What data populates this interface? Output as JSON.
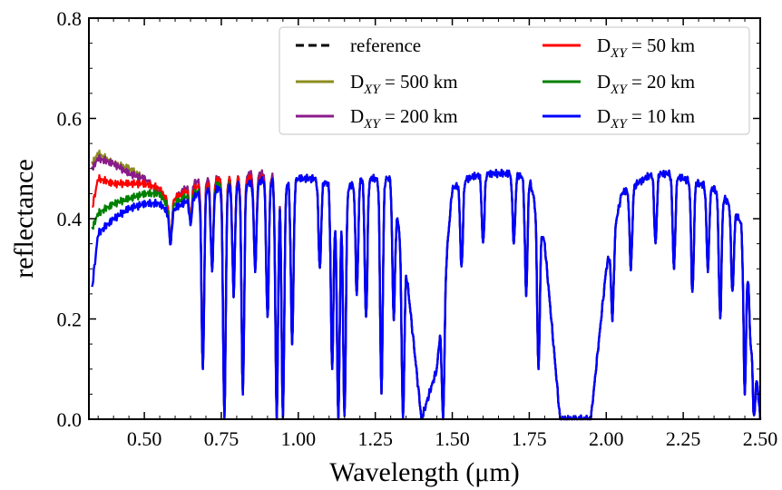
{
  "chart_data": {
    "type": "line",
    "title": "",
    "xlabel": "Wavelength (μm)",
    "ylabel": "reflectance",
    "xlim": [
      0.32,
      2.5
    ],
    "ylim": [
      0.0,
      0.8
    ],
    "xticks": [
      0.5,
      0.75,
      1.0,
      1.25,
      1.5,
      1.75,
      2.0,
      2.25,
      2.5
    ],
    "xtick_labels": [
      "0.50",
      "0.75",
      "1.00",
      "1.25",
      "1.50",
      "1.75",
      "2.00",
      "2.25",
      "2.50"
    ],
    "yticks": [
      0.0,
      0.2,
      0.4,
      0.6,
      0.8
    ],
    "ytick_labels": [
      "0.0",
      "0.2",
      "0.4",
      "0.6",
      "0.8"
    ],
    "grid": false,
    "legend_position": "top-right",
    "legend_columns": 2,
    "series": [
      {
        "id": "reference",
        "label": "reference",
        "color": "#000000",
        "dashed": true
      },
      {
        "id": "d500",
        "label_main": "D",
        "label_sub": "XY",
        "label_rest": " = 500 km",
        "color": "#8c8c1e",
        "dashed": false
      },
      {
        "id": "d200",
        "label_main": "D",
        "label_sub": "XY",
        "label_rest": " = 200 km",
        "color": "#8b1a8b",
        "dashed": false
      },
      {
        "id": "d50",
        "label_main": "D",
        "label_sub": "XY",
        "label_rest": " = 50 km",
        "color": "#ff0000",
        "dashed": false
      },
      {
        "id": "d20",
        "label_main": "D",
        "label_sub": "XY",
        "label_rest": " = 20 km",
        "color": "#008000",
        "dashed": false
      },
      {
        "id": "d10",
        "label_main": "D",
        "label_sub": "XY",
        "label_rest": " = 10 km",
        "color": "#0000ff",
        "dashed": false
      }
    ],
    "envelope": {
      "x": [
        0.33,
        0.35,
        0.4,
        0.45,
        0.5,
        0.55,
        0.58,
        0.6,
        0.65,
        0.7,
        0.75,
        0.8,
        0.85,
        0.9,
        0.93,
        0.96,
        1.0,
        1.05,
        1.1,
        1.13,
        1.16,
        1.2,
        1.25,
        1.3,
        1.35,
        1.4,
        1.45,
        1.5,
        1.55,
        1.6,
        1.65,
        1.7,
        1.75,
        1.8,
        1.85,
        1.9,
        1.95,
        2.0,
        2.05,
        2.1,
        2.15,
        2.2,
        2.25,
        2.3,
        2.35,
        2.4,
        2.45,
        2.5
      ],
      "reference": [
        0.51,
        0.53,
        0.51,
        0.5,
        0.48,
        0.45,
        0.43,
        0.44,
        0.47,
        0.48,
        0.48,
        0.48,
        0.49,
        0.49,
        0.48,
        0.47,
        0.48,
        0.48,
        0.47,
        0.4,
        0.46,
        0.48,
        0.48,
        0.48,
        0.3,
        0.0,
        0.1,
        0.46,
        0.48,
        0.49,
        0.49,
        0.49,
        0.48,
        0.35,
        0.0,
        0.0,
        0.0,
        0.3,
        0.45,
        0.47,
        0.49,
        0.49,
        0.48,
        0.47,
        0.46,
        0.43,
        0.38,
        0.0
      ],
      "d500": [
        0.51,
        0.53,
        0.51,
        0.5,
        0.48,
        0.45,
        0.43,
        0.44,
        0.47,
        0.48,
        0.48,
        0.48,
        0.49,
        0.49,
        0.48,
        0.47,
        0.48,
        0.48,
        0.47,
        0.4,
        0.46,
        0.48,
        0.48,
        0.48,
        0.3,
        0.0,
        0.1,
        0.46,
        0.48,
        0.49,
        0.49,
        0.49,
        0.48,
        0.35,
        0.0,
        0.0,
        0.0,
        0.3,
        0.45,
        0.47,
        0.49,
        0.49,
        0.48,
        0.47,
        0.46,
        0.43,
        0.38,
        0.0
      ],
      "d200": [
        0.5,
        0.52,
        0.51,
        0.49,
        0.48,
        0.45,
        0.43,
        0.44,
        0.47,
        0.48,
        0.48,
        0.48,
        0.49,
        0.49,
        0.48,
        0.47,
        0.48,
        0.48,
        0.47,
        0.4,
        0.46,
        0.48,
        0.48,
        0.48,
        0.3,
        0.0,
        0.1,
        0.46,
        0.48,
        0.49,
        0.49,
        0.49,
        0.48,
        0.35,
        0.0,
        0.0,
        0.0,
        0.3,
        0.45,
        0.47,
        0.49,
        0.49,
        0.48,
        0.47,
        0.46,
        0.43,
        0.38,
        0.0
      ],
      "d50": [
        0.42,
        0.48,
        0.47,
        0.47,
        0.47,
        0.46,
        0.43,
        0.44,
        0.46,
        0.47,
        0.48,
        0.48,
        0.48,
        0.48,
        0.47,
        0.47,
        0.48,
        0.48,
        0.47,
        0.4,
        0.46,
        0.48,
        0.48,
        0.48,
        0.3,
        0.0,
        0.1,
        0.46,
        0.48,
        0.49,
        0.49,
        0.49,
        0.48,
        0.35,
        0.0,
        0.0,
        0.0,
        0.3,
        0.45,
        0.47,
        0.49,
        0.49,
        0.48,
        0.47,
        0.46,
        0.43,
        0.38,
        0.0
      ],
      "d20": [
        0.38,
        0.41,
        0.43,
        0.44,
        0.45,
        0.45,
        0.42,
        0.43,
        0.45,
        0.46,
        0.47,
        0.47,
        0.47,
        0.48,
        0.47,
        0.47,
        0.48,
        0.48,
        0.47,
        0.4,
        0.46,
        0.48,
        0.48,
        0.48,
        0.3,
        0.0,
        0.1,
        0.46,
        0.48,
        0.49,
        0.49,
        0.49,
        0.48,
        0.35,
        0.0,
        0.0,
        0.0,
        0.3,
        0.45,
        0.47,
        0.49,
        0.49,
        0.48,
        0.47,
        0.46,
        0.43,
        0.38,
        0.0
      ],
      "d10": [
        0.26,
        0.37,
        0.4,
        0.42,
        0.43,
        0.43,
        0.41,
        0.42,
        0.44,
        0.46,
        0.46,
        0.47,
        0.47,
        0.48,
        0.47,
        0.47,
        0.48,
        0.48,
        0.47,
        0.4,
        0.46,
        0.48,
        0.48,
        0.48,
        0.3,
        0.0,
        0.1,
        0.46,
        0.48,
        0.49,
        0.49,
        0.49,
        0.48,
        0.35,
        0.0,
        0.0,
        0.0,
        0.3,
        0.45,
        0.47,
        0.49,
        0.49,
        0.48,
        0.47,
        0.46,
        0.43,
        0.38,
        0.0
      ]
    },
    "absorption_dips": [
      {
        "x": 0.585,
        "depth": 0.35
      },
      {
        "x": 0.65,
        "depth": 0.39
      },
      {
        "x": 0.69,
        "depth": 0.1
      },
      {
        "x": 0.72,
        "depth": 0.3
      },
      {
        "x": 0.76,
        "depth": 0.0
      },
      {
        "x": 0.79,
        "depth": 0.25
      },
      {
        "x": 0.82,
        "depth": 0.05
      },
      {
        "x": 0.86,
        "depth": 0.3
      },
      {
        "x": 0.9,
        "depth": 0.2
      },
      {
        "x": 0.93,
        "depth": 0.0
      },
      {
        "x": 0.95,
        "depth": 0.0
      },
      {
        "x": 0.98,
        "depth": 0.15
      },
      {
        "x": 1.07,
        "depth": 0.3
      },
      {
        "x": 1.11,
        "depth": 0.1
      },
      {
        "x": 1.13,
        "depth": 0.0
      },
      {
        "x": 1.15,
        "depth": 0.0
      },
      {
        "x": 1.19,
        "depth": 0.25
      },
      {
        "x": 1.22,
        "depth": 0.2
      },
      {
        "x": 1.27,
        "depth": 0.05
      },
      {
        "x": 1.31,
        "depth": 0.2
      },
      {
        "x": 1.34,
        "depth": 0.0
      },
      {
        "x": 1.47,
        "depth": 0.0
      },
      {
        "x": 1.53,
        "depth": 0.3
      },
      {
        "x": 1.6,
        "depth": 0.35
      },
      {
        "x": 1.7,
        "depth": 0.35
      },
      {
        "x": 1.74,
        "depth": 0.25
      },
      {
        "x": 1.78,
        "depth": 0.1
      },
      {
        "x": 2.02,
        "depth": 0.2
      },
      {
        "x": 2.08,
        "depth": 0.3
      },
      {
        "x": 2.16,
        "depth": 0.35
      },
      {
        "x": 2.22,
        "depth": 0.3
      },
      {
        "x": 2.28,
        "depth": 0.25
      },
      {
        "x": 2.33,
        "depth": 0.3
      },
      {
        "x": 2.37,
        "depth": 0.2
      },
      {
        "x": 2.41,
        "depth": 0.25
      },
      {
        "x": 2.45,
        "depth": 0.05
      },
      {
        "x": 2.47,
        "depth": 0.15
      },
      {
        "x": 2.48,
        "depth": 0.0
      }
    ]
  }
}
